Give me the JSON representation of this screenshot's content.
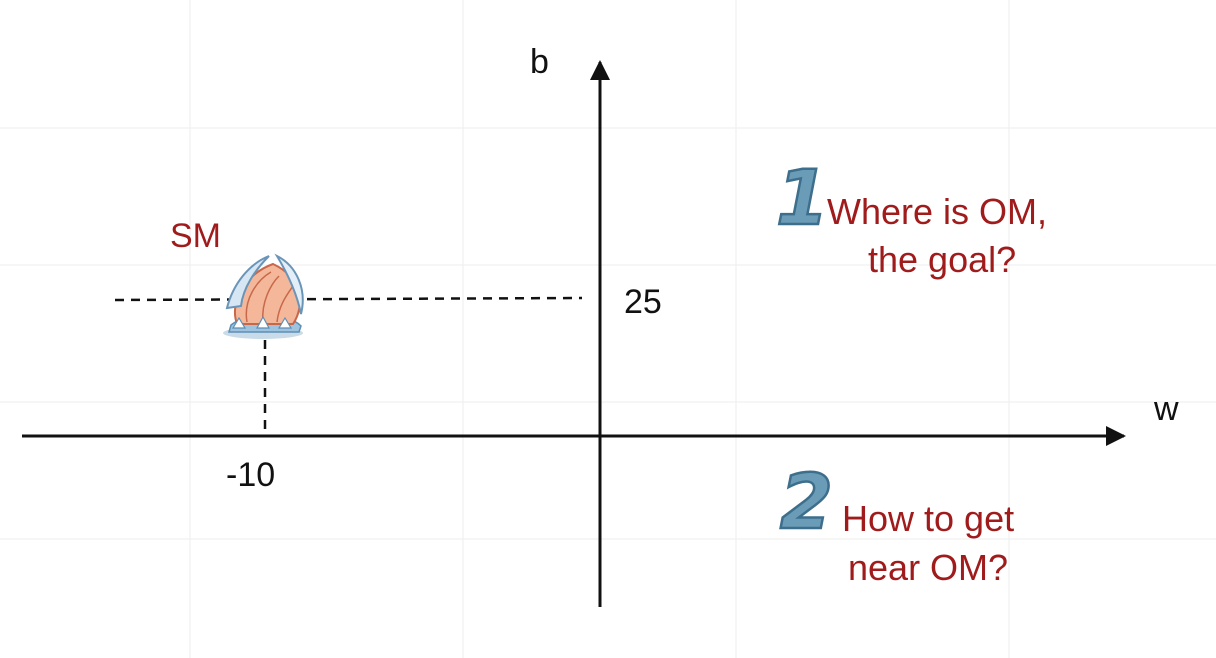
{
  "axes": {
    "x_label": "w",
    "y_label": "b",
    "axis_color": "#111111"
  },
  "point": {
    "label": "SM",
    "w": -10,
    "b": 25,
    "w_tick_label": "-10",
    "b_tick_label": "25",
    "label_color": "#a01c1c",
    "marker_icon": "ship-icon"
  },
  "questions": [
    {
      "number": "1",
      "lines": [
        "Where is OM,",
        "the goal?"
      ]
    },
    {
      "number": "2",
      "lines": [
        "How to get",
        "near OM?"
      ]
    }
  ],
  "colors": {
    "question_text": "#a01c1c",
    "step_number_fill": "#6a9cb8",
    "step_number_stroke": "#3d6f8c",
    "grid": "#eeeeee"
  }
}
